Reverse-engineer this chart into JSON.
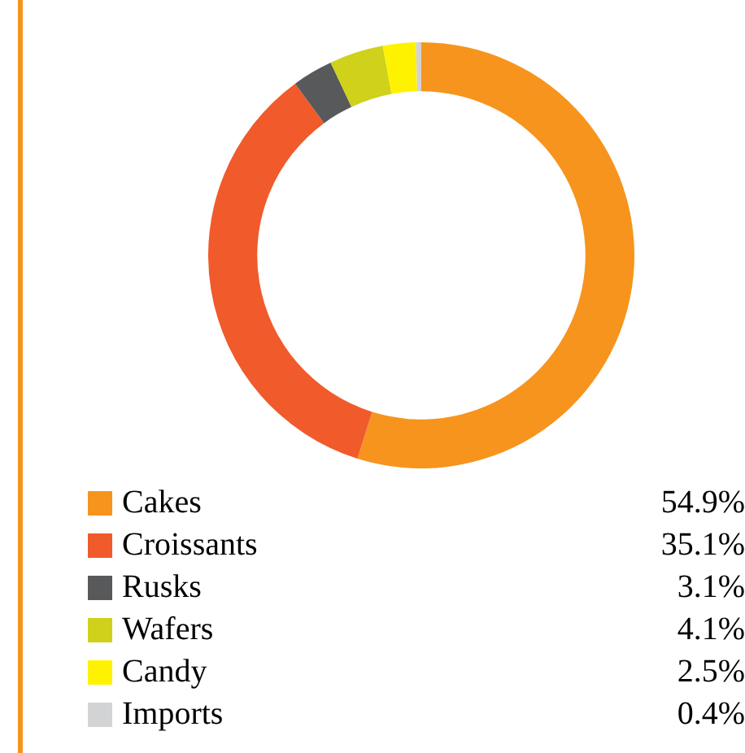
{
  "chart_data": {
    "type": "donut",
    "categories": [
      "Cakes",
      "Croissants",
      "Rusks",
      "Wafers",
      "Candy",
      "Imports"
    ],
    "values": [
      54.9,
      35.1,
      3.1,
      4.1,
      2.5,
      0.4
    ],
    "value_labels": [
      "54.9%",
      "35.1%",
      "3.1%",
      "4.1%",
      "2.5%",
      "0.4%"
    ],
    "colors": [
      "#f7941d",
      "#f15a2b",
      "#58595b",
      "#cfd11a",
      "#fff200",
      "#d1d3d4"
    ],
    "legend": "bottom"
  }
}
